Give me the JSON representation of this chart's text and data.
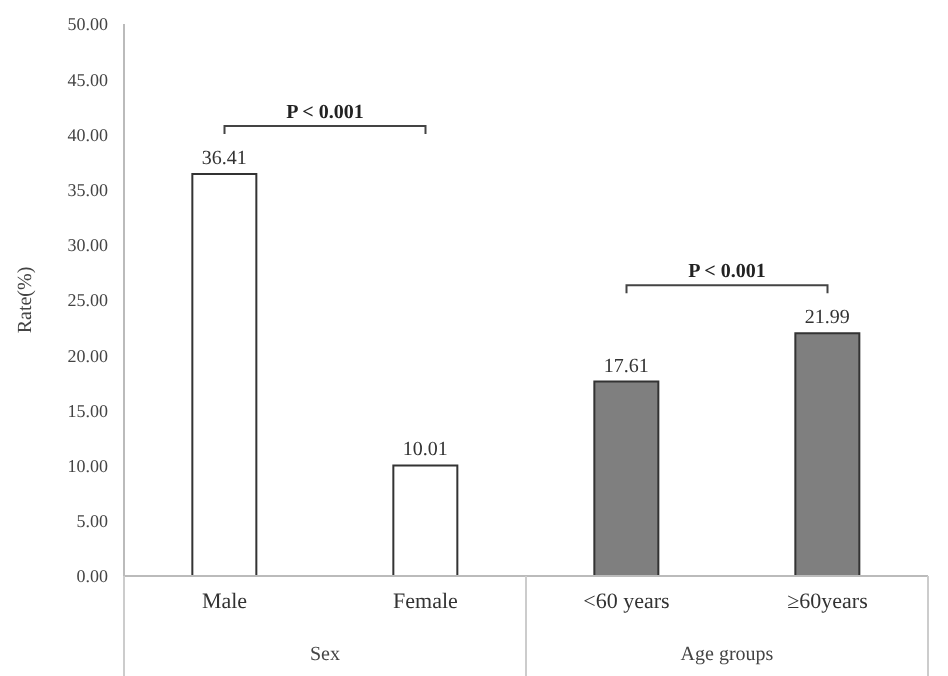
{
  "chart_data": {
    "type": "bar",
    "ylabel": "Rate(%)",
    "categories": [
      "Male",
      "Female",
      "<60 years",
      "≥60years"
    ],
    "values": [
      36.41,
      10.01,
      17.61,
      21.99
    ],
    "colors": [
      "#ffffff",
      "#ffffff",
      "#7f7f7f",
      "#7f7f7f"
    ],
    "ylim": [
      0,
      50
    ],
    "yticks": [
      {
        "value": 0,
        "label": "0.00"
      },
      {
        "value": 5,
        "label": "5.00"
      },
      {
        "value": 10,
        "label": "10.00"
      },
      {
        "value": 15,
        "label": "15.00"
      },
      {
        "value": 20,
        "label": "20.00"
      },
      {
        "value": 25,
        "label": "25.00"
      },
      {
        "value": 30,
        "label": "30.00"
      },
      {
        "value": 35,
        "label": "35.00"
      },
      {
        "value": 40,
        "label": "40.00"
      },
      {
        "value": 45,
        "label": "45.00"
      },
      {
        "value": 50,
        "label": "50.00"
      }
    ],
    "data_labels": true,
    "grid": false,
    "legend": false,
    "annotations": [
      "P < 0.001",
      "P < 0.001",
      "Sex",
      "Age groups"
    ]
  }
}
